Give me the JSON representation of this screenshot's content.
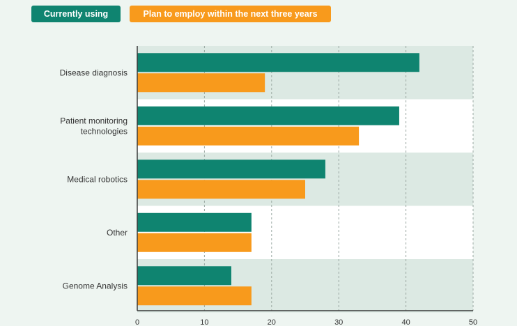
{
  "chart_data": {
    "type": "bar",
    "orientation": "horizontal",
    "categories": [
      "Disease diagnosis",
      "Patient monitoring technologies",
      "Medical robotics",
      "Other",
      "Genome Analysis"
    ],
    "category_labels": [
      [
        "Disease diagnosis"
      ],
      [
        "Patient monitoring",
        "technologies"
      ],
      [
        "Medical robotics"
      ],
      [
        "Other"
      ],
      [
        "Genome Analysis"
      ]
    ],
    "series": [
      {
        "name": "Currently using",
        "color": "#0f8470",
        "values": [
          42,
          39,
          28,
          17,
          14
        ]
      },
      {
        "name": "Plan to employ within the next three years",
        "color": "#f89a1c",
        "values": [
          19,
          33,
          25,
          17,
          17
        ]
      }
    ],
    "xlim": [
      0,
      50
    ],
    "x_ticks": [
      0,
      10,
      20,
      30,
      40,
      50
    ],
    "grid": true,
    "legend_position": "top-left",
    "colors": {
      "band": "#dce9e3",
      "background": "#eef5f1",
      "gridline": "#9aa8a2",
      "label": "#333333"
    }
  }
}
